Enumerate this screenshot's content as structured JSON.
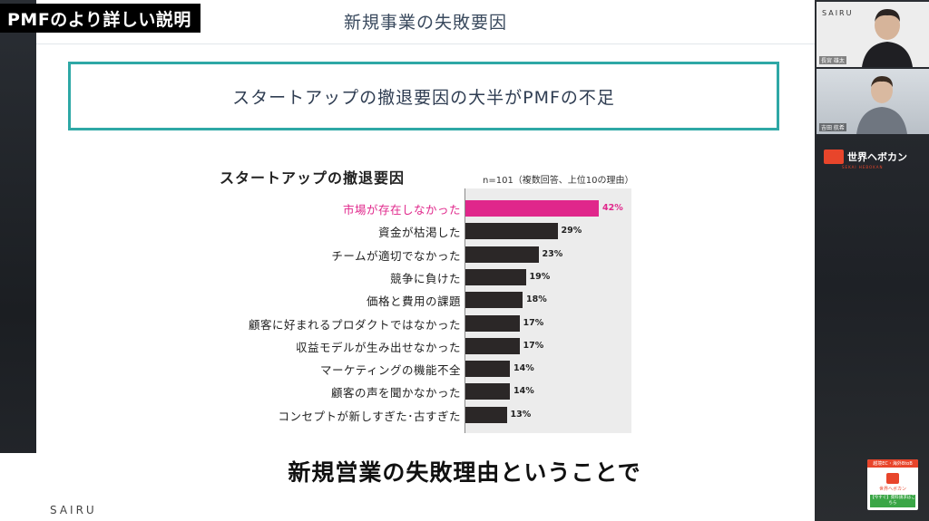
{
  "badge": "PMFのより詳しい説明",
  "slide": {
    "title": "新規事業の失敗要因",
    "headline": "スタートアップの撤退要因の大半がPMFの不足",
    "footer_logo": "SAIRU"
  },
  "chart_data": {
    "type": "bar",
    "title": "スタートアップの撤退要因",
    "note": "n=101（複数回答、上位10の理由）",
    "unit": "%",
    "xlim": [
      0,
      42
    ],
    "categories": [
      "市場が存在しなかった",
      "資金が枯渇した",
      "チームが適切でなかった",
      "競争に負けた",
      "価格と費用の課題",
      "顧客に好まれるプロダクトではなかった",
      "収益モデルが生み出せなかった",
      "マーケティングの機能不全",
      "顧客の声を聞かなかった",
      "コンセプトが新しすぎた･古すぎた"
    ],
    "values": [
      42,
      29,
      23,
      19,
      18,
      17,
      17,
      14,
      14,
      13
    ],
    "value_labels": [
      "42%",
      "29%",
      "23%",
      "19%",
      "18%",
      "17%",
      "17%",
      "14%",
      "14%",
      "13%"
    ],
    "highlight_index": 0,
    "colors": {
      "highlight": "#e0278b",
      "bar": "#2b2727",
      "background": "#ececec"
    }
  },
  "caption": "新規営業の失敗理由ということで",
  "sidebar": {
    "cam1_logo": "SAIRU",
    "cam1_name": "長宮 雄太",
    "cam2_name": "吉田 航希",
    "brand_name": "世界ヘボカン",
    "brand_sub": "SEKAI HEBOKAN",
    "ad_top": "越境EC・海外BtoB",
    "ad_name": "世界ヘボカン",
    "ad_button": "【今すぐ】資料請求はこちら"
  },
  "colors": {
    "accent_teal": "#2ea8a6",
    "accent_pink": "#e0278b",
    "brand_orange": "#e8452b"
  }
}
